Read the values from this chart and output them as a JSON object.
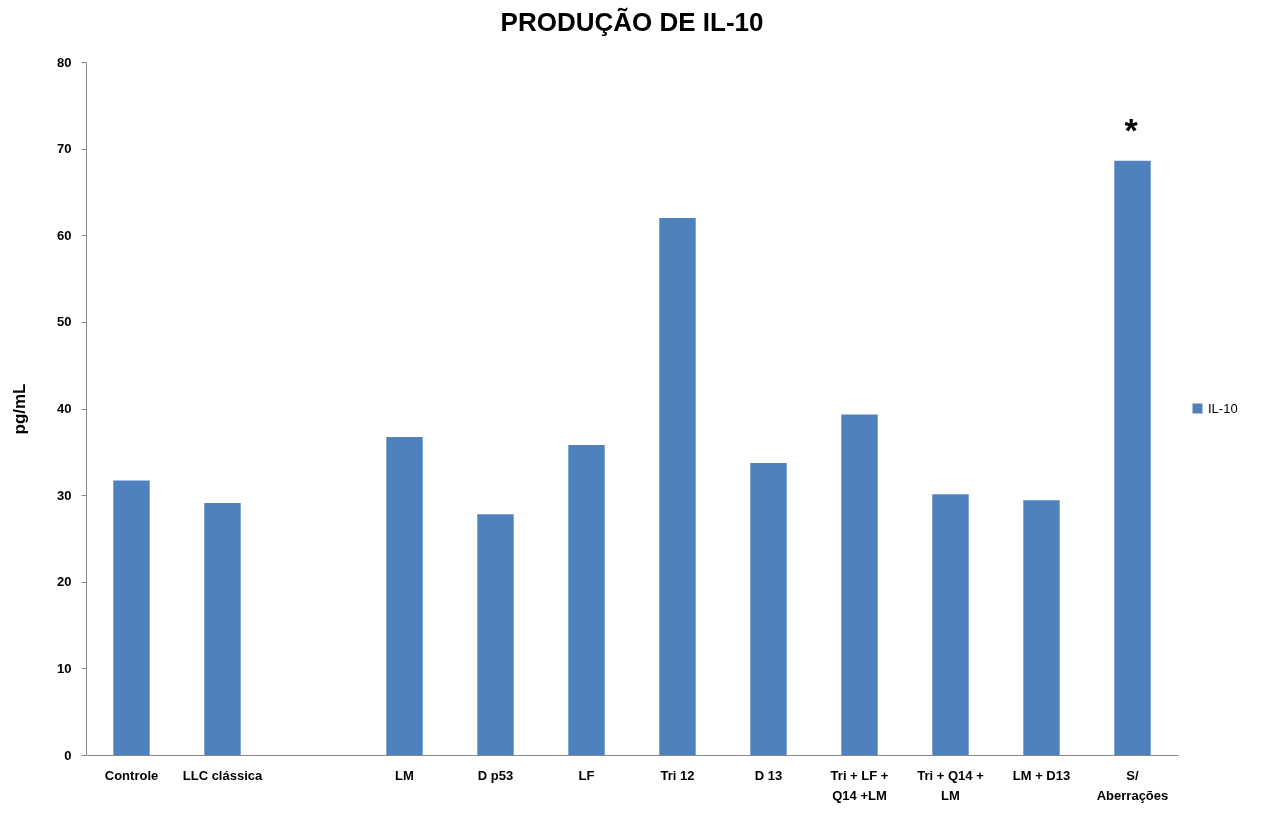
{
  "chart_data": {
    "type": "bar",
    "title": "PRODUÇÃO DE IL-10",
    "ylabel": "pg/mL",
    "categories": [
      "Controle",
      "LLC clássica",
      null,
      "LM",
      "D p53",
      "LF",
      "Tri 12",
      "D 13",
      "Tri + LF +\nQ14 +LM",
      "Tri + Q14 +\nLM",
      "LM + D13",
      "S/\nAberrações"
    ],
    "series": [
      {
        "name": "IL-10",
        "color": "#4f81bd",
        "values": [
          31.7,
          29.1,
          null,
          36.7,
          27.8,
          35.8,
          62.0,
          33.7,
          39.3,
          30.1,
          29.4,
          68.6
        ]
      }
    ],
    "ylim": [
      0,
      80
    ],
    "yticks": [
      0,
      10,
      20,
      30,
      40,
      50,
      60,
      70,
      80
    ],
    "grid": false,
    "legend": "right",
    "annotations": [
      "*"
    ]
  }
}
